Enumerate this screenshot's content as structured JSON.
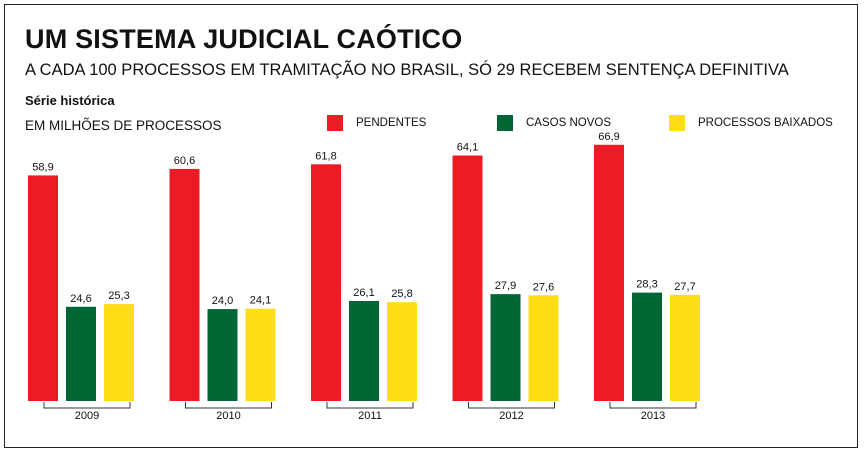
{
  "title": "UM SISTEMA JUDICIAL CAÓTICO",
  "subtitle": "A CADA 100 PROCESSOS EM TRAMITAÇÃO NO BRASIL, SÓ 29 RECEBEM SENTENÇA DEFINITIVA",
  "series_label": "Série histórica",
  "unit_label": "EM MILHÕES DE PROCESSOS",
  "colors": {
    "pendentes": "#ed1c24",
    "casos_novos": "#006633",
    "processos_baixados": "#ffde17"
  },
  "chart_data": {
    "type": "bar",
    "categories": [
      "2009",
      "2010",
      "2011",
      "2012",
      "2013"
    ],
    "series": [
      {
        "name": "PENDENTES",
        "values": [
          58.9,
          60.6,
          61.8,
          64.1,
          66.9
        ]
      },
      {
        "name": "CASOS NOVOS",
        "values": [
          24.6,
          24.0,
          26.1,
          27.9,
          28.3
        ]
      },
      {
        "name": "PROCESSOS BAIXADOS",
        "values": [
          25.3,
          24.1,
          25.8,
          27.6,
          27.7
        ]
      }
    ],
    "data_labels": [
      [
        "58,9",
        "60,6",
        "61,8",
        "64,1",
        "66,9"
      ],
      [
        "24,6",
        "24,0",
        "26,1",
        "27,9",
        "28,3"
      ],
      [
        "25,3",
        "24,1",
        "25,8",
        "27,6",
        "27,7"
      ]
    ],
    "ylim": [
      0,
      70
    ],
    "grid": false,
    "legend_position": "top-right"
  }
}
